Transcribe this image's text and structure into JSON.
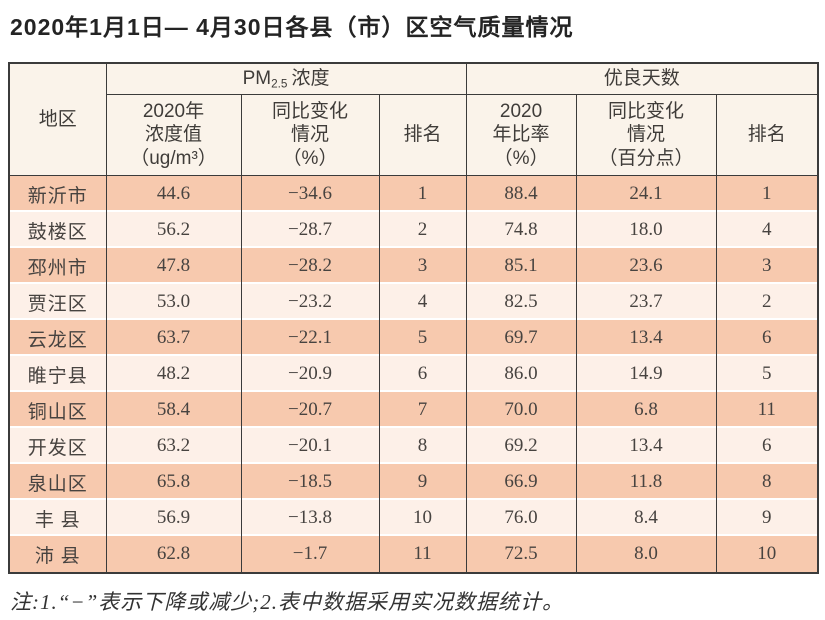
{
  "title": "2020年1月1日— 4月30日各县（市）区空气质量情况",
  "table": {
    "header": {
      "region": "地区",
      "pm25_group": {
        "prefix": "PM",
        "sub": "2.5",
        "suffix": "浓度"
      },
      "good_days_group": "优良天数",
      "pm25_value_col": {
        "lines": [
          "2020年",
          "浓度值",
          "（ug/m³）"
        ]
      },
      "pm25_change_col": {
        "lines": [
          "同比变化",
          "情况",
          "（%）"
        ]
      },
      "pm25_rank_col": {
        "label": "排名"
      },
      "good_rate_col": {
        "lines": [
          "2020",
          "年比率",
          "（%）"
        ]
      },
      "good_change_col": {
        "lines": [
          "同比变化",
          "情况",
          "（百分点）"
        ]
      },
      "good_rank_col": {
        "label": "排名"
      }
    },
    "rows": [
      {
        "region": "新沂市",
        "pm25_value": "44.6",
        "pm25_change": "−34.6",
        "pm25_rank": "1",
        "good_rate": "88.4",
        "good_change": "24.1",
        "good_rank": "1"
      },
      {
        "region": "鼓楼区",
        "pm25_value": "56.2",
        "pm25_change": "−28.7",
        "pm25_rank": "2",
        "good_rate": "74.8",
        "good_change": "18.0",
        "good_rank": "4"
      },
      {
        "region": "邳州市",
        "pm25_value": "47.8",
        "pm25_change": "−28.2",
        "pm25_rank": "3",
        "good_rate": "85.1",
        "good_change": "23.6",
        "good_rank": "3"
      },
      {
        "region": "贾汪区",
        "pm25_value": "53.0",
        "pm25_change": "−23.2",
        "pm25_rank": "4",
        "good_rate": "82.5",
        "good_change": "23.7",
        "good_rank": "2"
      },
      {
        "region": "云龙区",
        "pm25_value": "63.7",
        "pm25_change": "−22.1",
        "pm25_rank": "5",
        "good_rate": "69.7",
        "good_change": "13.4",
        "good_rank": "6"
      },
      {
        "region": "睢宁县",
        "pm25_value": "48.2",
        "pm25_change": "−20.9",
        "pm25_rank": "6",
        "good_rate": "86.0",
        "good_change": "14.9",
        "good_rank": "5"
      },
      {
        "region": "铜山区",
        "pm25_value": "58.4",
        "pm25_change": "−20.7",
        "pm25_rank": "7",
        "good_rate": "70.0",
        "good_change": "6.8",
        "good_rank": "11"
      },
      {
        "region": "开发区",
        "pm25_value": "63.2",
        "pm25_change": "−20.1",
        "pm25_rank": "8",
        "good_rate": "69.2",
        "good_change": "13.4",
        "good_rank": "6"
      },
      {
        "region": "泉山区",
        "pm25_value": "65.8",
        "pm25_change": "−18.5",
        "pm25_rank": "9",
        "good_rate": "66.9",
        "good_change": "11.8",
        "good_rank": "8"
      },
      {
        "region": "丰 县",
        "pm25_value": "56.9",
        "pm25_change": "−13.8",
        "pm25_rank": "10",
        "good_rate": "76.0",
        "good_change": "8.4",
        "good_rank": "9"
      },
      {
        "region": "沛 县",
        "pm25_value": "62.8",
        "pm25_change": "−1.7",
        "pm25_rank": "11",
        "good_rate": "72.5",
        "good_change": "8.0",
        "good_rank": "10"
      }
    ]
  },
  "footnote": "注:1.“−”表示下降或减少;2.表中数据采用实况数据统计。",
  "colors": {
    "row_odd": "#f7c9ae",
    "row_even": "#fdf0e8",
    "header_bg": "#faf3ea",
    "border": "#3b3b3b",
    "text": "#454545"
  }
}
